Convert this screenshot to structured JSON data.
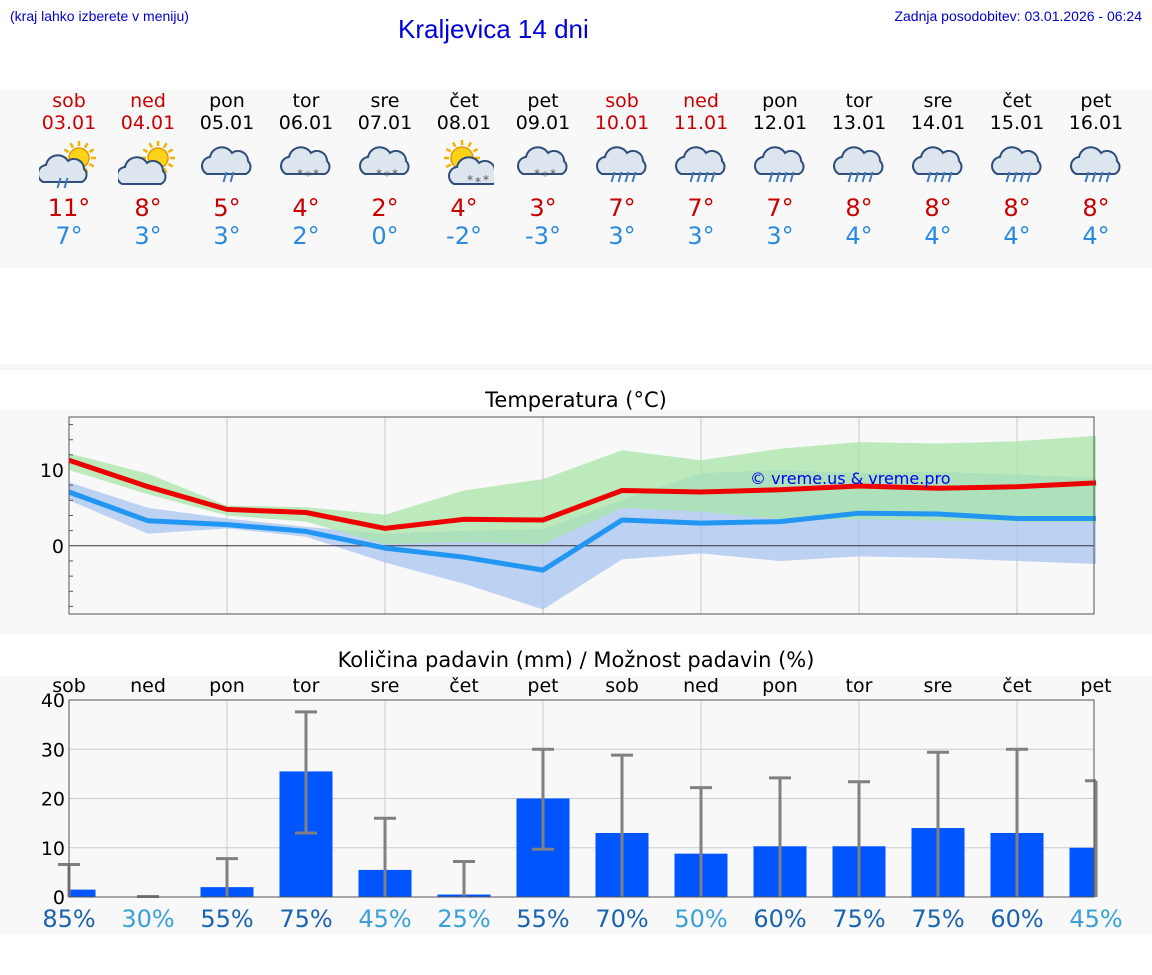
{
  "header": {
    "hint": "(kraj lahko izberete v meniju)",
    "title": "Kraljevica 14 dni",
    "updated": "Zadnja posodobitev: 03.01.2026 - 06:24"
  },
  "days": [
    {
      "name": "sob",
      "date": "03.01",
      "weekend": true,
      "icon": "sun-cloud-rain-icon",
      "max": "11°",
      "min": "7°"
    },
    {
      "name": "ned",
      "date": "04.01",
      "weekend": true,
      "icon": "sun-cloud-icon",
      "max": "8°",
      "min": "3°"
    },
    {
      "name": "pon",
      "date": "05.01",
      "weekend": false,
      "icon": "cloud-rain-icon",
      "max": "5°",
      "min": "3°"
    },
    {
      "name": "tor",
      "date": "06.01",
      "weekend": false,
      "icon": "cloud-snow-icon",
      "max": "4°",
      "min": "2°"
    },
    {
      "name": "sre",
      "date": "07.01",
      "weekend": false,
      "icon": "cloud-snow-icon",
      "max": "2°",
      "min": "0°"
    },
    {
      "name": "čet",
      "date": "08.01",
      "weekend": false,
      "icon": "sun-cloud-snow-icon",
      "max": "4°",
      "min": "-2°"
    },
    {
      "name": "pet",
      "date": "09.01",
      "weekend": false,
      "icon": "cloud-snow-icon",
      "max": "3°",
      "min": "-3°"
    },
    {
      "name": "sob",
      "date": "10.01",
      "weekend": true,
      "icon": "cloud-heavy-rain-icon",
      "max": "7°",
      "min": "3°"
    },
    {
      "name": "ned",
      "date": "11.01",
      "weekend": true,
      "icon": "cloud-heavy-rain-icon",
      "max": "7°",
      "min": "3°"
    },
    {
      "name": "pon",
      "date": "12.01",
      "weekend": false,
      "icon": "cloud-heavy-rain-icon",
      "max": "7°",
      "min": "3°"
    },
    {
      "name": "tor",
      "date": "13.01",
      "weekend": false,
      "icon": "cloud-heavy-rain-icon",
      "max": "8°",
      "min": "4°"
    },
    {
      "name": "sre",
      "date": "14.01",
      "weekend": false,
      "icon": "cloud-heavy-rain-icon",
      "max": "8°",
      "min": "4°"
    },
    {
      "name": "čet",
      "date": "15.01",
      "weekend": false,
      "icon": "cloud-heavy-rain-icon",
      "max": "8°",
      "min": "4°"
    },
    {
      "name": "pet",
      "date": "16.01",
      "weekend": false,
      "icon": "cloud-heavy-rain-icon",
      "max": "8°",
      "min": "4°"
    }
  ],
  "colors": {
    "weekend": "#cc0000",
    "max_line": "#ee0000",
    "min_line": "#2196f3",
    "max_band": "#a8e6a8",
    "min_band": "#aac4f0",
    "bar": "#0055ff",
    "whisker": "#808080",
    "pct_dark": "#1a63b0",
    "pct_light": "#3aa0d8"
  },
  "chart_data": [
    {
      "type": "line",
      "title": "Temperatura (°C)",
      "watermark": "© vreme.us & vreme.pro",
      "x": [
        "03.01",
        "04.01",
        "05.01",
        "06.01",
        "07.01",
        "08.01",
        "09.01",
        "10.01",
        "11.01",
        "12.01",
        "13.01",
        "14.01",
        "15.01",
        "16.01"
      ],
      "yticks": [
        0,
        10
      ],
      "ylim": [
        -9,
        17
      ],
      "series": [
        {
          "name": "max",
          "values": [
            11.3,
            7.8,
            4.8,
            4.4,
            2.3,
            3.5,
            3.4,
            7.3,
            7.1,
            7.4,
            7.9,
            7.6,
            7.8,
            8.3
          ]
        },
        {
          "name": "min",
          "values": [
            7.1,
            3.3,
            2.8,
            1.9,
            -0.3,
            -1.5,
            -3.2,
            3.4,
            3.0,
            3.2,
            4.3,
            4.2,
            3.6,
            3.6
          ]
        }
      ],
      "bands": [
        {
          "name": "max-range",
          "lower": [
            10.0,
            6.8,
            4.0,
            3.2,
            0.2,
            0.5,
            0.2,
            5.0,
            4.5,
            3.5,
            3.5,
            3.3,
            3.2,
            3.1
          ],
          "upper": [
            12.2,
            9.5,
            5.3,
            5.1,
            4.1,
            7.3,
            8.8,
            12.6,
            11.3,
            12.8,
            13.7,
            13.5,
            13.8,
            14.5
          ]
        },
        {
          "name": "min-range",
          "lower": [
            6.0,
            1.6,
            2.3,
            1.2,
            -2.2,
            -5.0,
            -8.4,
            -1.8,
            -1.0,
            -2.0,
            -1.4,
            -1.6,
            -2.0,
            -2.4
          ],
          "upper": [
            8.4,
            5.0,
            3.6,
            2.5,
            1.6,
            2.0,
            2.2,
            6.0,
            9.6,
            10.0,
            9.6,
            9.8,
            9.4,
            9.0
          ]
        }
      ]
    },
    {
      "type": "bar",
      "title": "Količina padavin (mm) / Možnost padavin (%)",
      "categories": [
        "sob",
        "ned",
        "pon",
        "tor",
        "sre",
        "čet",
        "pet",
        "sob",
        "ned",
        "pon",
        "tor",
        "sre",
        "čet",
        "pet"
      ],
      "yticks": [
        0,
        10,
        20,
        30,
        40
      ],
      "ylim": [
        0,
        40
      ],
      "values": [
        1.5,
        0.1,
        2.0,
        25.5,
        5.5,
        0.5,
        20.0,
        13.0,
        8.8,
        10.3,
        10.3,
        14.0,
        13.0,
        10.0
      ],
      "err_low": [
        0,
        0,
        0,
        13.0,
        0,
        0,
        9.7,
        0,
        0,
        0,
        0,
        0,
        0,
        0
      ],
      "err_high": [
        6.6,
        0.1,
        7.8,
        37.6,
        16.0,
        7.2,
        30.0,
        28.8,
        22.2,
        24.2,
        23.4,
        29.4,
        30.0,
        23.6
      ],
      "probability": [
        "85%",
        "30%",
        "55%",
        "75%",
        "45%",
        "25%",
        "55%",
        "70%",
        "50%",
        "60%",
        "75%",
        "75%",
        "60%",
        "45%"
      ],
      "probability_shade": [
        "dark",
        "light",
        "dark",
        "dark",
        "light",
        "light",
        "dark",
        "dark",
        "light",
        "dark",
        "dark",
        "dark",
        "dark",
        "light"
      ]
    }
  ]
}
